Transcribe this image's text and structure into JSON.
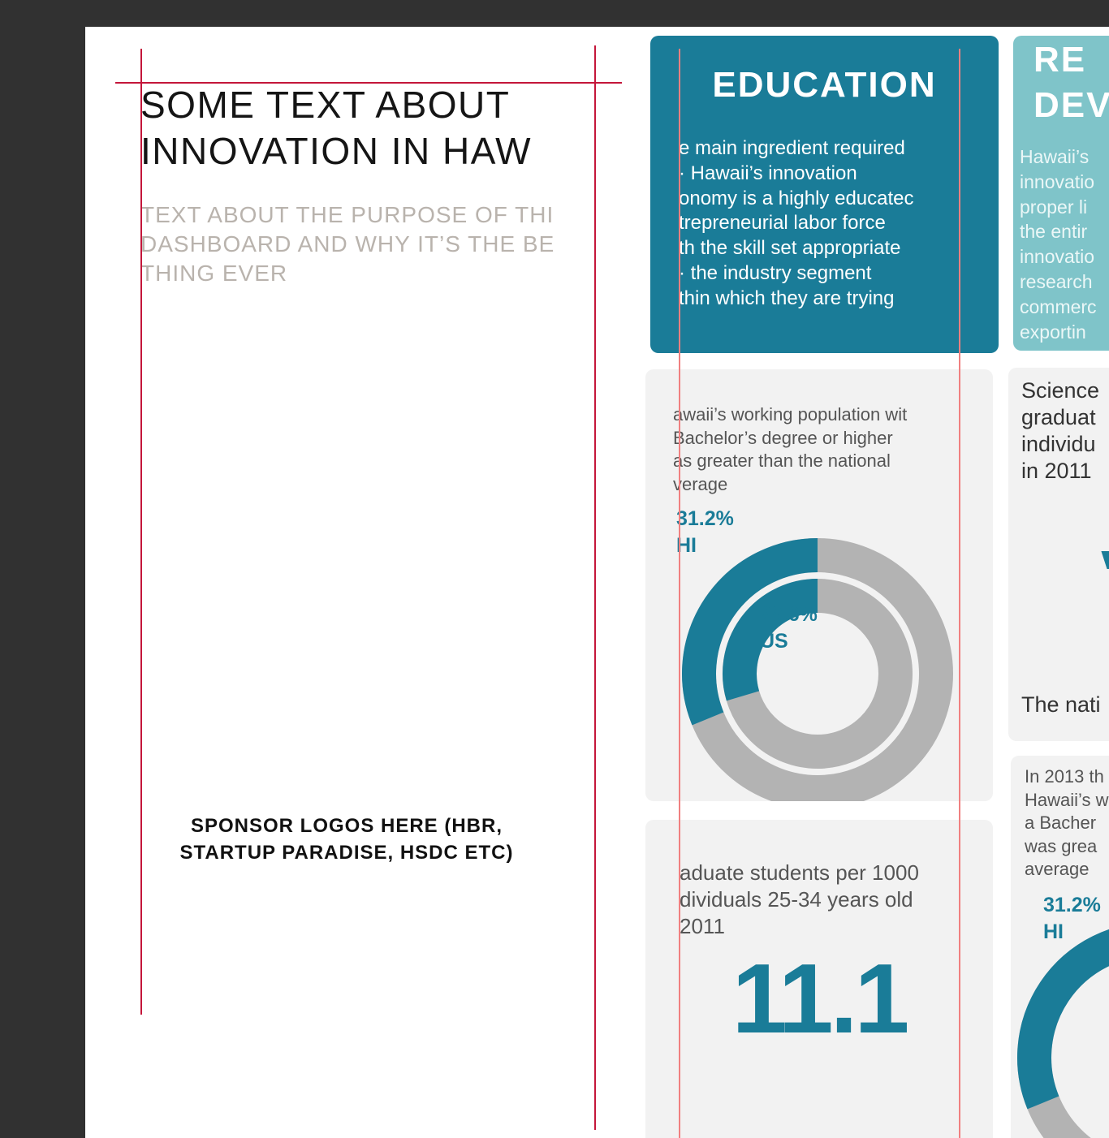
{
  "colors": {
    "canvas": "#313131",
    "artboard": "#ffffff",
    "primary_teal": "#1a7c98",
    "light_teal": "#7fc4c9",
    "card_gray": "#f2f2f2",
    "donut_gray": "#b3b3b3",
    "guide_dark": "#c4163a",
    "guide_light": "#f08080"
  },
  "intro": {
    "heading": "SOME TEXT ABOUT\nINNOVATION IN HAW",
    "subheading": "TEXT ABOUT THE PURPOSE OF THI\nDASHBOARD AND WHY IT’S THE BE\nTHING EVER",
    "sponsor_note": "SPONSOR LOGOS HERE (HBR,\nSTARTUP PARADISE, HSDC ETC)"
  },
  "education_card": {
    "title": "EDUCATION",
    "text": "e main ingredient required\n· Hawaii’s innovation\nonomy is a highly educatec\ntrepreneurial labor force\nth the skill set appropriate\n· the industry segment\nthin which they are trying"
  },
  "rd_card": {
    "title": "RE\nDEV",
    "text": "Hawaii’s\ninnovatio\nproper li\nthe entir\ninnovatio\nresearch\ncommerc\nexportin"
  },
  "degree_card": {
    "text": "awaii’s working population wit\nBachelor’s degree or higher\nas greater than the national\nverage",
    "hi_label": "31.2%\nHI",
    "us_label": "29.6%\nUS"
  },
  "grad_card": {
    "text": "aduate students per 1000\ndividuals 25-34 years old\n 2011",
    "value": "11.1"
  },
  "science_card": {
    "text": "Science\ngraduat\nindividu\nin 2011",
    "footer": "The nati"
  },
  "bottom_card": {
    "text": "In 2013 th\nHawaii’s w\na Bacher\nwas grea\naverage",
    "hi_label": "31.2%\nHI"
  },
  "chart_data": [
    {
      "type": "pie",
      "variant": "nested-donut",
      "series": [
        {
          "name": "HI",
          "value": 31.2,
          "label": "31.2%"
        },
        {
          "name": "US",
          "value": 29.6,
          "label": "29.6%"
        }
      ]
    },
    {
      "type": "pie",
      "variant": "donut-partial",
      "series": [
        {
          "name": "HI",
          "value": 31.2,
          "label": "31.2%"
        }
      ]
    }
  ]
}
